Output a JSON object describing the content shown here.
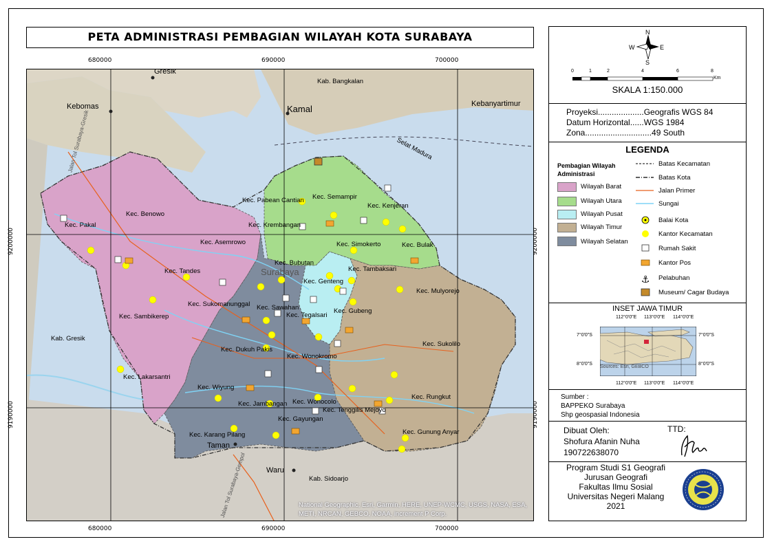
{
  "title": "PETA ADMINISTRASI PEMBAGIAN WILAYAH KOTA SURABAYA",
  "grid": {
    "x_ticks": [
      "680000",
      "690000",
      "700000"
    ],
    "y_ticks": [
      "9200000",
      "9190000"
    ]
  },
  "map_labels": {
    "places": [
      "Gresik",
      "Kebomas",
      "Kamal",
      "Kebanyartimur",
      "Taman",
      "Waru",
      "Surabaya"
    ],
    "regions": [
      "Kab. Bangkalan",
      "Kab. Gresik",
      "Kab. Sidoarjo",
      "Selat Madura"
    ],
    "roads": [
      "Jalan Tol Surabaya-Gresik",
      "Jalan Tol Surabaya-Gempol"
    ],
    "kecamatan": [
      "Kec. Pakal",
      "Kec. Benowo",
      "Kec. Asemrowo",
      "Kec. Tandes",
      "Kec. Sukomanunggal",
      "Kec. Sambikerep",
      "Kec. Lakarsantri",
      "Kec. Pabean Cantian",
      "Kec. Semampir",
      "Kec. Kenjeran",
      "Kec. Krembangan",
      "Kec. Simokerto",
      "Kec. Bulak",
      "Kec. Bubutan",
      "Kec. Genteng",
      "Kec. Tambaksari",
      "Kec. Mulyorejo",
      "Kec. Sawahan",
      "Kec. Tegalsari",
      "Kec. Gubeng",
      "Kec. Dukuh Pakis",
      "Kec. Wonokromo",
      "Kec. Sukolilo",
      "Kec. Wiyung",
      "Kec. Jambangan",
      "Kec. Wonocolo",
      "Kec. Tenggilis Mejoyo",
      "Kec. Rungkut",
      "Kec. Gayungan",
      "Kec. Karang Pilang",
      "Kec. Gunung Anyar"
    ],
    "credit": "National Geographic, Esri, Garmin, HERE, UNEP-WCMC, USGS, NASA, ESA, METI, NRCAN, GEBCO, NOAA, increment P Corp."
  },
  "north_arrow": {
    "n": "N",
    "s": "S",
    "e": "E",
    "w": "W"
  },
  "scalebar": {
    "ticks": [
      "0",
      "1",
      "2",
      "4",
      "6",
      "8"
    ],
    "unit": "Km",
    "label": "SKALA 1:150.000"
  },
  "projection": {
    "proyeksi_label": "Proyeksi....................Geografis WGS 84",
    "datum_label": "Datum Horizontal......WGS 1984",
    "zona_label": "Zona.............................49 South"
  },
  "legend": {
    "title": "LEGENDA",
    "area_heading": "Pembagian Wilayah Administrasi",
    "areas": [
      {
        "label": "Wilayah Barat",
        "color": "#d9a3c9"
      },
      {
        "label": "Wilayah Utara",
        "color": "#a6dc8c"
      },
      {
        "label": "Wilayah Pusat",
        "color": "#b9eef2"
      },
      {
        "label": "Wilayah Timur",
        "color": "#c2b093"
      },
      {
        "label": "Wilayah Selatan",
        "color": "#7f8c9e"
      }
    ],
    "lines": [
      {
        "label": "Batas Kecamatan"
      },
      {
        "label": "Batas Kota"
      },
      {
        "label": "Jalan Primer",
        "color": "#e8601c"
      },
      {
        "label": "Sungai",
        "color": "#7fd3f5"
      }
    ],
    "points": [
      {
        "label": "Balai Kota",
        "icon": "balai-kota-icon"
      },
      {
        "label": "Kantor Kecamatan",
        "icon": "kantor-kecamatan-icon"
      },
      {
        "label": "Rumah Sakit",
        "icon": "rumah-sakit-icon"
      },
      {
        "label": "Kantor Pos",
        "icon": "kantor-pos-icon"
      },
      {
        "label": "Pelabuhan",
        "icon": "pelabuhan-icon"
      },
      {
        "label": "Museum/ Cagar Budaya",
        "icon": "museum-icon"
      }
    ]
  },
  "inset": {
    "title": "INSET JAWA TIMUR",
    "top_ticks": [
      "112°0'0\"E",
      "113°0'0\"E",
      "114°0'0\"E"
    ],
    "bottom_ticks": [
      "112°0'0\"E",
      "113°0'0\"E",
      "114°0'0\"E"
    ],
    "left_ticks": [
      "7°0'0\"S",
      "8°0'0\"S"
    ],
    "right_ticks": [
      "7°0'0\"S",
      "8°0'0\"S"
    ],
    "credit": "Sources: Esri, GEBCO"
  },
  "source": {
    "heading": "Sumber :",
    "line1": "BAPPEKO Surabaya",
    "line2": "Shp geospasial Indonesia"
  },
  "author": {
    "heading": "Dibuat Oleh:",
    "name": "Shofura Afanin Nuha",
    "nim": "190722638070",
    "ttd": "TTD:",
    "signature": "Nura"
  },
  "institution": {
    "line1": "Program Studi S1 Geografi",
    "line2": "Jurusan Geografi",
    "line3": "Fakultas Ilmu Sosial",
    "line4": "Universitas Negeri Malang",
    "year": "2021",
    "logo_text": "UNIVERSITAS NEGERI MALANG"
  }
}
